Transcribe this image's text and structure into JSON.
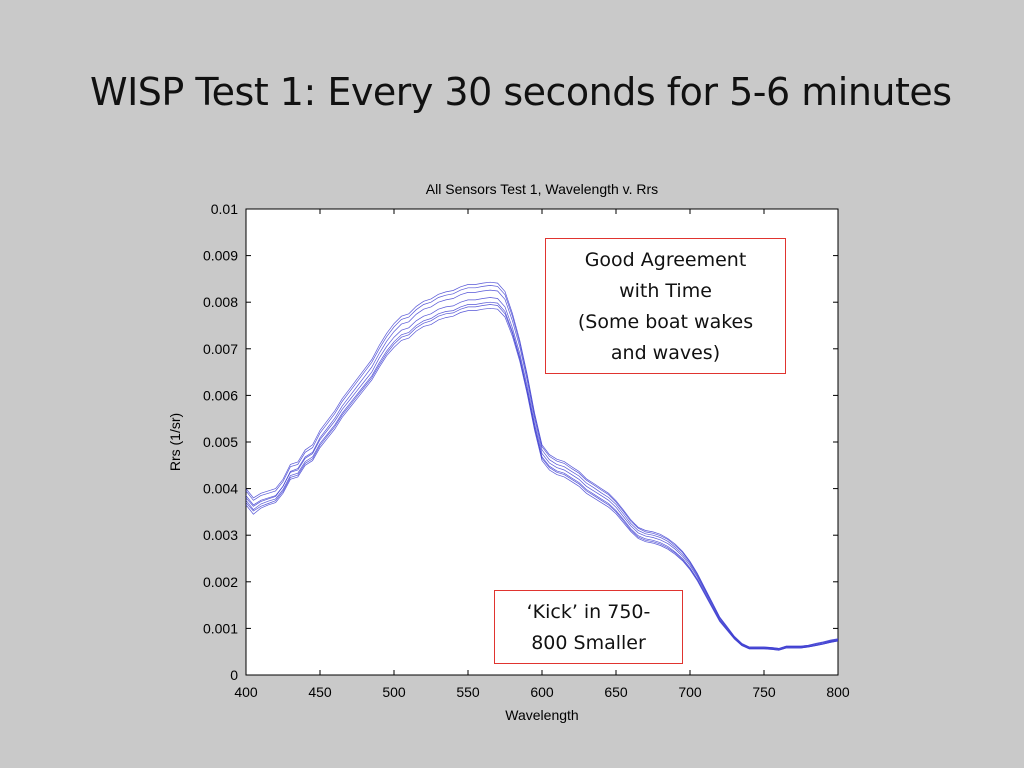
{
  "slide": {
    "title": "WISP Test 1: Every 30 seconds for 5-6 minutes"
  },
  "callouts": {
    "agreement": [
      "Good Agreement",
      "with Time",
      "(Some boat wakes",
      "and waves)"
    ],
    "kick": [
      "‘Kick’ in 750-",
      "800 Smaller"
    ]
  },
  "chart_data": {
    "type": "line",
    "title": "All Sensors Test 1, Wavelength v. Rrs",
    "xlabel": "Wavelength",
    "ylabel": "Rrs (1/sr)",
    "xlim": [
      400,
      800
    ],
    "ylim": [
      0,
      0.01
    ],
    "xticks": [
      400,
      450,
      500,
      550,
      600,
      650,
      700,
      750,
      800
    ],
    "yticks": [
      "0",
      "0.001",
      "0.002",
      "0.003",
      "0.004",
      "0.005",
      "0.006",
      "0.007",
      "0.008",
      "0.009",
      "0.01"
    ],
    "grid": false,
    "line_color": "#3a3ad0",
    "x": [
      400,
      405,
      410,
      415,
      420,
      425,
      430,
      435,
      440,
      445,
      450,
      455,
      460,
      465,
      470,
      475,
      480,
      485,
      490,
      495,
      500,
      505,
      510,
      515,
      520,
      525,
      530,
      535,
      540,
      545,
      550,
      555,
      560,
      565,
      570,
      575,
      580,
      585,
      590,
      595,
      600,
      605,
      610,
      615,
      620,
      625,
      630,
      635,
      640,
      645,
      650,
      655,
      660,
      665,
      670,
      675,
      680,
      685,
      690,
      695,
      700,
      705,
      710,
      715,
      720,
      725,
      730,
      735,
      740,
      745,
      750,
      755,
      760,
      765,
      770,
      775,
      780,
      785,
      790,
      795,
      800
    ],
    "series": [
      {
        "values": [
          0.00385,
          0.00365,
          0.00375,
          0.0038,
          0.00385,
          0.00405,
          0.00435,
          0.0044,
          0.00465,
          0.00475,
          0.00505,
          0.00525,
          0.00545,
          0.0057,
          0.0059,
          0.0061,
          0.0063,
          0.0065,
          0.0068,
          0.00705,
          0.00725,
          0.0074,
          0.00745,
          0.0076,
          0.0077,
          0.00775,
          0.00785,
          0.0079,
          0.00792,
          0.008,
          0.00805,
          0.00805,
          0.00808,
          0.0081,
          0.00808,
          0.0079,
          0.00745,
          0.0069,
          0.0062,
          0.0054,
          0.00475,
          0.00455,
          0.00445,
          0.0044,
          0.0043,
          0.0042,
          0.00405,
          0.00395,
          0.00385,
          0.00375,
          0.0036,
          0.0034,
          0.0032,
          0.00305,
          0.00298,
          0.00295,
          0.0029,
          0.00282,
          0.0027,
          0.00255,
          0.00235,
          0.0021,
          0.0018,
          0.0015,
          0.0012,
          0.001,
          0.0008,
          0.00065,
          0.00058,
          0.00058,
          0.00058,
          0.00057,
          0.00055,
          0.0006,
          0.0006,
          0.0006,
          0.00062,
          0.00065,
          0.00068,
          0.00072,
          0.00075
        ]
      },
      {
        "values": [
          0.00375,
          0.00355,
          0.00367,
          0.00373,
          0.00378,
          0.00398,
          0.00428,
          0.00433,
          0.00458,
          0.00468,
          0.00497,
          0.00517,
          0.00537,
          0.00562,
          0.00582,
          0.00602,
          0.00622,
          0.00642,
          0.0067,
          0.00695,
          0.00715,
          0.0073,
          0.00735,
          0.0075,
          0.0076,
          0.00765,
          0.00775,
          0.0078,
          0.00782,
          0.0079,
          0.00795,
          0.00795,
          0.00798,
          0.008,
          0.00798,
          0.0078,
          0.00737,
          0.00682,
          0.00612,
          0.00533,
          0.00468,
          0.00448,
          0.00438,
          0.00433,
          0.00423,
          0.00413,
          0.00398,
          0.00388,
          0.00378,
          0.00368,
          0.00353,
          0.00334,
          0.00314,
          0.00299,
          0.00292,
          0.00289,
          0.00284,
          0.00276,
          0.00264,
          0.0025,
          0.0023,
          0.00206,
          0.00177,
          0.00147,
          0.00118,
          0.00098,
          0.00079,
          0.00064,
          0.00057,
          0.00057,
          0.00057,
          0.00056,
          0.00054,
          0.00059,
          0.00059,
          0.00059,
          0.00061,
          0.00064,
          0.00067,
          0.00071,
          0.00074
        ]
      },
      {
        "values": [
          0.00365,
          0.00345,
          0.00358,
          0.00365,
          0.0037,
          0.0039,
          0.0042,
          0.00425,
          0.0045,
          0.0046,
          0.00488,
          0.00508,
          0.00528,
          0.00553,
          0.00573,
          0.00593,
          0.00613,
          0.00633,
          0.0066,
          0.00685,
          0.00703,
          0.00718,
          0.00723,
          0.00738,
          0.00748,
          0.00752,
          0.00762,
          0.00767,
          0.0077,
          0.00778,
          0.00782,
          0.00782,
          0.00785,
          0.00787,
          0.00785,
          0.00768,
          0.00727,
          0.00673,
          0.00603,
          0.00525,
          0.0046,
          0.0044,
          0.0043,
          0.00425,
          0.00415,
          0.00405,
          0.0039,
          0.0038,
          0.0037,
          0.0036,
          0.00346,
          0.00327,
          0.00308,
          0.00293,
          0.00286,
          0.00283,
          0.00278,
          0.0027,
          0.00259,
          0.00245,
          0.00226,
          0.00202,
          0.00173,
          0.00144,
          0.00115,
          0.00096,
          0.00077,
          0.00063,
          0.00056,
          0.00056,
          0.00056,
          0.00055,
          0.00053,
          0.00058,
          0.00058,
          0.00058,
          0.0006,
          0.00063,
          0.00066,
          0.0007,
          0.00073
        ]
      },
      {
        "values": [
          0.0038,
          0.00362,
          0.00372,
          0.00378,
          0.00383,
          0.00405,
          0.00437,
          0.00443,
          0.00468,
          0.00478,
          0.00509,
          0.0053,
          0.00551,
          0.00577,
          0.00598,
          0.00619,
          0.0064,
          0.00661,
          0.0069,
          0.00716,
          0.00737,
          0.00753,
          0.00758,
          0.00774,
          0.00785,
          0.0079,
          0.008,
          0.00805,
          0.00808,
          0.00816,
          0.00821,
          0.00821,
          0.00824,
          0.00826,
          0.00824,
          0.00806,
          0.0076,
          0.00704,
          0.00632,
          0.0055,
          0.00483,
          0.00462,
          0.00452,
          0.00447,
          0.00437,
          0.00427,
          0.00412,
          0.00402,
          0.00391,
          0.00381,
          0.00366,
          0.00346,
          0.00325,
          0.0031,
          0.00303,
          0.003,
          0.00295,
          0.00287,
          0.00274,
          0.00259,
          0.00239,
          0.00213,
          0.00183,
          0.00152,
          0.00122,
          0.00101,
          0.00081,
          0.00066,
          0.00059,
          0.00059,
          0.00059,
          0.00058,
          0.00056,
          0.00061,
          0.00061,
          0.00061,
          0.00063,
          0.00066,
          0.00069,
          0.00073,
          0.00076
        ]
      },
      {
        "values": [
          0.00395,
          0.00375,
          0.00385,
          0.0039,
          0.00395,
          0.00415,
          0.00447,
          0.00452,
          0.00478,
          0.00488,
          0.00519,
          0.0054,
          0.00561,
          0.00587,
          0.00608,
          0.00629,
          0.0065,
          0.00671,
          0.007,
          0.00726,
          0.00747,
          0.00763,
          0.00768,
          0.00784,
          0.00795,
          0.008,
          0.0081,
          0.00815,
          0.00818,
          0.00826,
          0.00831,
          0.00831,
          0.00834,
          0.00836,
          0.00834,
          0.00816,
          0.0077,
          0.00712,
          0.0064,
          0.00557,
          0.0049,
          0.00469,
          0.00459,
          0.00454,
          0.00443,
          0.00433,
          0.00418,
          0.00408,
          0.00397,
          0.00387,
          0.00371,
          0.00351,
          0.0033,
          0.00315,
          0.00307,
          0.00304,
          0.00299,
          0.00291,
          0.00278,
          0.00263,
          0.00242,
          0.00216,
          0.00185,
          0.00155,
          0.00124,
          0.00103,
          0.00082,
          0.00067,
          0.0006,
          0.0006,
          0.0006,
          0.00059,
          0.00057,
          0.00062,
          0.00062,
          0.00062,
          0.00064,
          0.00067,
          0.0007,
          0.00074,
          0.00077
        ]
      },
      {
        "values": [
          0.004,
          0.0038,
          0.0039,
          0.00395,
          0.004,
          0.0042,
          0.00452,
          0.00457,
          0.00483,
          0.00494,
          0.00525,
          0.00546,
          0.00567,
          0.00593,
          0.00614,
          0.00635,
          0.00656,
          0.00677,
          0.00707,
          0.00733,
          0.00754,
          0.0077,
          0.00775,
          0.00791,
          0.00802,
          0.00807,
          0.00817,
          0.00822,
          0.00825,
          0.00833,
          0.00838,
          0.00838,
          0.00841,
          0.00843,
          0.00841,
          0.00823,
          0.00776,
          0.00718,
          0.00645,
          0.00562,
          0.00494,
          0.00473,
          0.00463,
          0.00458,
          0.00447,
          0.00437,
          0.00421,
          0.00411,
          0.004,
          0.0039,
          0.00374,
          0.00354,
          0.00333,
          0.00317,
          0.0031,
          0.00307,
          0.00302,
          0.00293,
          0.00281,
          0.00265,
          0.00244,
          0.00218,
          0.00187,
          0.00156,
          0.00125,
          0.00104,
          0.00083,
          0.00068,
          0.0006,
          0.0006,
          0.0006,
          0.00059,
          0.00057,
          0.00062,
          0.00062,
          0.00062,
          0.00064,
          0.00068,
          0.00071,
          0.00075,
          0.00078
        ]
      },
      {
        "values": [
          0.0037,
          0.00352,
          0.00362,
          0.00368,
          0.00374,
          0.00394,
          0.00424,
          0.00429,
          0.00454,
          0.00464,
          0.00493,
          0.00513,
          0.00533,
          0.00558,
          0.00578,
          0.00598,
          0.00618,
          0.00638,
          0.00665,
          0.0069,
          0.0071,
          0.00725,
          0.0073,
          0.00745,
          0.00755,
          0.0076,
          0.0077,
          0.00775,
          0.00777,
          0.00785,
          0.0079,
          0.0079,
          0.00793,
          0.00795,
          0.00793,
          0.00775,
          0.00733,
          0.00678,
          0.00608,
          0.0053,
          0.00465,
          0.00445,
          0.00435,
          0.0043,
          0.0042,
          0.0041,
          0.00395,
          0.00385,
          0.00375,
          0.00365,
          0.0035,
          0.00331,
          0.00311,
          0.00296,
          0.00289,
          0.00286,
          0.00281,
          0.00273,
          0.00262,
          0.00247,
          0.00228,
          0.00204,
          0.00175,
          0.00146,
          0.00117,
          0.00097,
          0.00078,
          0.00063,
          0.00056,
          0.00056,
          0.00056,
          0.00055,
          0.00053,
          0.00058,
          0.00058,
          0.00058,
          0.0006,
          0.00063,
          0.00066,
          0.0007,
          0.00073
        ]
      }
    ]
  }
}
